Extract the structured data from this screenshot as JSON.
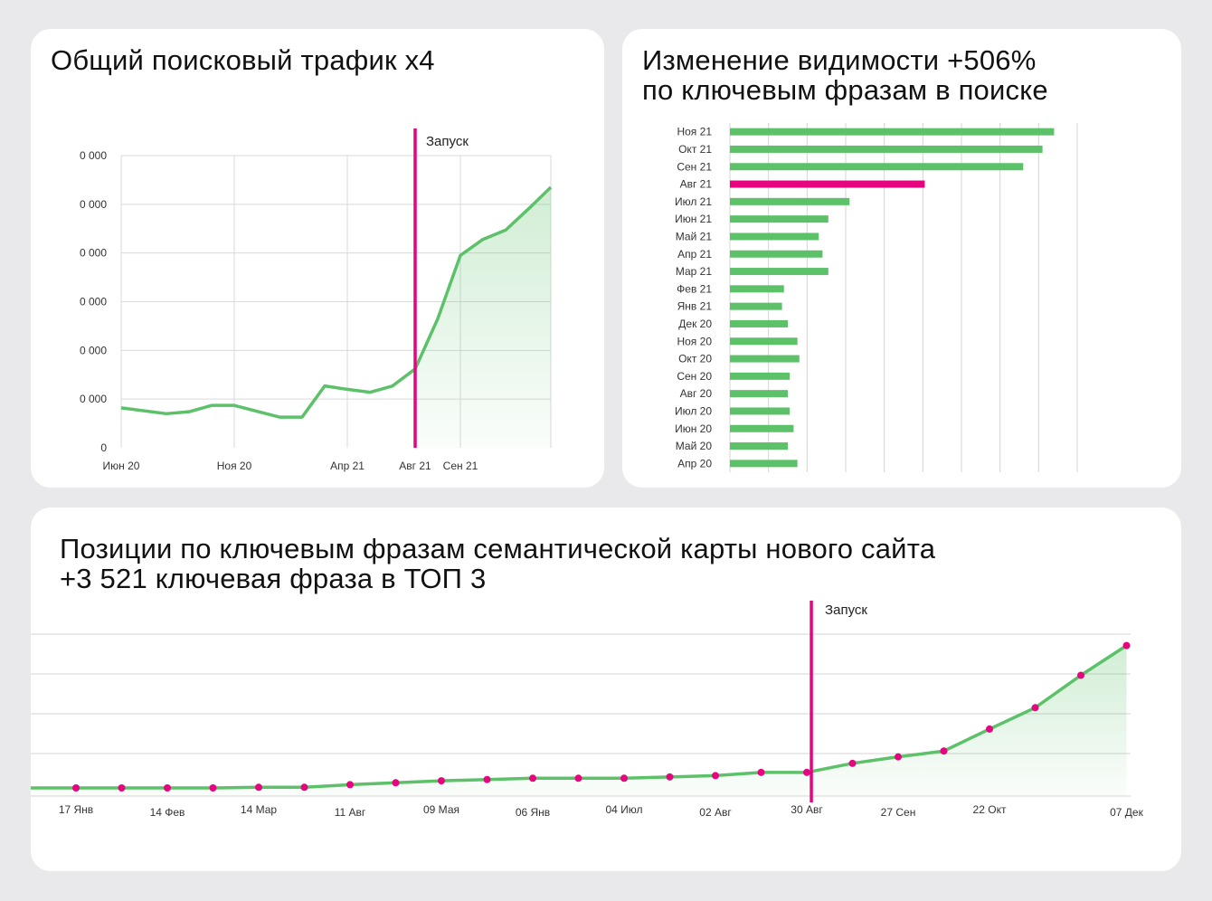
{
  "cards": {
    "traffic": {
      "title": "Общий поисковый трафик х4"
    },
    "visibility": {
      "title": "Изменение видимости +506%\nпо ключевым фразам в поиске"
    },
    "positions": {
      "title": "Позиции по ключевым фразам семантической карты нового сайта\n+3 521 ключевая фраза в ТОП 3"
    }
  },
  "chart_data": [
    {
      "type": "area",
      "title": "Общий поисковый трафик х4",
      "y_tick_labels": [
        "0",
        "0 000",
        "0 000",
        "0 000",
        "0 000",
        "0 000",
        "0 000"
      ],
      "y_ticks": [
        0,
        1,
        2,
        3,
        4,
        5,
        6
      ],
      "ylim": [
        0,
        6
      ],
      "x_tick_labels": [
        {
          "label": "Июн 20",
          "x": 0
        },
        {
          "label": "Ноя 20",
          "x": 5
        },
        {
          "label": "Апр 21",
          "x": 10
        },
        {
          "label": "Авг 21",
          "x": 13
        },
        {
          "label": "Сен 21",
          "x": 15
        }
      ],
      "x": [
        0,
        2,
        3,
        4,
        5,
        7,
        8,
        9,
        10,
        11,
        12,
        13,
        14,
        15,
        16,
        17,
        18,
        19
      ],
      "values": [
        0.82,
        0.7,
        0.74,
        0.87,
        0.87,
        0.63,
        0.63,
        1.27,
        1.2,
        1.14,
        1.27,
        1.62,
        2.65,
        3.95,
        4.28,
        4.47,
        4.9,
        5.35
      ],
      "xlim": [
        0,
        19
      ],
      "annotation": {
        "label": "Запуск",
        "x": 13.0
      },
      "line_color": "#5cc169",
      "annotation_color": "#e6057f",
      "grid": true
    },
    {
      "type": "bar",
      "orientation": "horizontal",
      "title": "Изменение видимости +506%",
      "categories": [
        "Ноя 21",
        "Окт 21",
        "Сен 21",
        "Авг 21",
        "Июл 21",
        "Июн 21",
        "Май 21",
        "Апр 21",
        "Мар 21",
        "Фев 21",
        "Янв 21",
        "Дек 20",
        "Ноя 20",
        "Окт 20",
        "Сен 20",
        "Авг 20",
        "Июл 20",
        "Июн 20",
        "Май 20",
        "Апр 20"
      ],
      "values": [
        8.4,
        8.1,
        7.6,
        5.05,
        3.1,
        2.55,
        2.3,
        2.4,
        2.55,
        1.4,
        1.35,
        1.5,
        1.75,
        1.8,
        1.55,
        1.5,
        1.55,
        1.65,
        1.5,
        1.75
      ],
      "xlim": [
        0,
        9
      ],
      "highlight_category": "Авг 21",
      "bar_color": "#5cc169",
      "highlight_color": "#e6057f",
      "grid": true
    },
    {
      "type": "area",
      "title": "Позиции по ключевым фразам семантической карты нового сайта",
      "x": [
        0,
        1,
        2,
        3,
        4,
        5,
        6,
        7,
        8,
        9,
        10,
        11,
        12,
        13,
        14,
        15,
        16,
        17,
        18,
        19,
        20,
        21,
        22,
        23
      ],
      "values": [
        0,
        0,
        0,
        0,
        0.05,
        0.05,
        0.25,
        0.4,
        0.55,
        0.65,
        0.75,
        0.75,
        0.75,
        0.85,
        0.95,
        1.2,
        1.2,
        1.9,
        2.4,
        2.85,
        4.55,
        6.2,
        8.7,
        11.0
      ],
      "xlim": [
        -1,
        23
      ],
      "ylim": [
        0,
        13
      ],
      "x_tick_labels": [
        {
          "label": "17 Янв",
          "x": 0
        },
        {
          "label": "14 Фев",
          "x": 2
        },
        {
          "label": "14 Мар",
          "x": 4
        },
        {
          "label": "11 Авг",
          "x": 6
        },
        {
          "label": "09 Мая",
          "x": 8
        },
        {
          "label": "06 Янв",
          "x": 10
        },
        {
          "label": "04 Июл",
          "x": 12
        },
        {
          "label": "02 Авг",
          "x": 14
        },
        {
          "label": "30 Авг",
          "x": 16
        },
        {
          "label": "27 Сен",
          "x": 18
        },
        {
          "label": "22 Окт",
          "x": 20
        },
        {
          "label": "07 Дек",
          "x": 23
        }
      ],
      "annotation": {
        "label": "Запуск",
        "x": 16.1
      },
      "line_color": "#5cc169",
      "marker_color": "#e6057f",
      "annotation_color": "#e6057f",
      "grid": true
    }
  ]
}
